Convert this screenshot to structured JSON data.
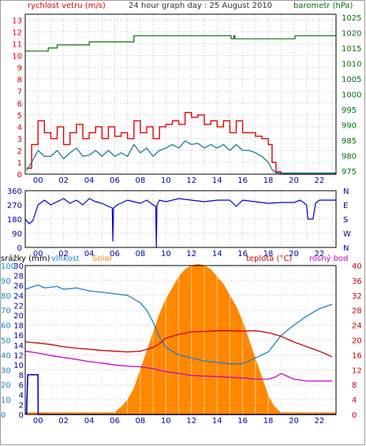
{
  "chart_data": [
    {
      "type": "line",
      "title": "24 hour graph day : 25 August 2010",
      "left_label": "rychlost vetru (m/s)",
      "right_label": "barometr (hPa)",
      "x_ticks": [
        "00",
        "02",
        "04",
        "06",
        "08",
        "10",
        "12",
        "14",
        "16",
        "18",
        "20",
        "22"
      ],
      "y_left_ticks": [
        "0",
        "1",
        "2",
        "3",
        "4",
        "5",
        "6",
        "7",
        "8",
        "9",
        "10",
        "11",
        "12",
        "13"
      ],
      "y_right_ticks": [
        "975",
        "980",
        "985",
        "990",
        "995",
        "1000",
        "1005",
        "1010",
        "1015",
        "1020",
        "1025"
      ],
      "ylim_left": [
        0,
        13.5
      ],
      "ylim_right": [
        974,
        1026
      ],
      "xlim": [
        -1,
        23.3
      ],
      "colors": {
        "gust": "#e00000",
        "wind": "#1a7a96",
        "pressure": "#007000"
      },
      "series": [
        {
          "key": "gust",
          "x": [
            -0.9,
            -0.5,
            0,
            0.5,
            1,
            1.5,
            2,
            2.5,
            3,
            3.5,
            4,
            4.5,
            5,
            5.5,
            6,
            6.5,
            7,
            7.5,
            8,
            8.5,
            9,
            9.5,
            10,
            10.5,
            11,
            11.5,
            12,
            12.5,
            13,
            13.5,
            14,
            14.5,
            15,
            15.5,
            16,
            16.5,
            17,
            17.5,
            18,
            18.3,
            18.6,
            19,
            23.3
          ],
          "y": [
            0.5,
            2.5,
            4.5,
            3.5,
            3,
            4,
            2.5,
            3.5,
            4.2,
            3,
            3.5,
            4,
            3,
            4,
            3.2,
            3.5,
            3,
            4.5,
            3.5,
            4,
            3,
            4,
            4.2,
            4.5,
            4.2,
            5.2,
            4.8,
            5,
            4.2,
            4.5,
            4,
            4.5,
            3.5,
            4.5,
            3.5,
            3.5,
            3.2,
            3,
            2.5,
            1,
            0.2,
            0,
            0
          ]
        },
        {
          "key": "wind",
          "x": [
            -0.9,
            -0.5,
            0,
            0.5,
            1,
            1.5,
            2,
            2.5,
            3,
            3.5,
            4,
            4.5,
            5,
            5.5,
            6,
            6.5,
            7,
            7.5,
            8,
            8.5,
            9,
            9.5,
            10,
            10.5,
            11,
            11.5,
            12,
            12.5,
            13,
            13.5,
            14,
            14.5,
            15,
            15.5,
            16,
            16.5,
            17,
            17.5,
            18,
            18.3,
            18.6,
            19,
            23.3
          ],
          "y": [
            0.3,
            1,
            2,
            1.5,
            1.5,
            2,
            1.3,
            1.8,
            2.2,
            1.5,
            1.6,
            2,
            1.5,
            2,
            1.5,
            1.8,
            1.5,
            2.5,
            1.8,
            2.2,
            1.5,
            2,
            2.2,
            2.5,
            2.2,
            2.8,
            2.5,
            2.6,
            2.2,
            2.5,
            2.2,
            2.5,
            2,
            2.5,
            2,
            2,
            1.8,
            1.5,
            1,
            0.4,
            0.1,
            0.1,
            0.1
          ]
        },
        {
          "key": "pressure",
          "x": [
            -1,
            0.1,
            0.8,
            1.5,
            3,
            4,
            6.2,
            7.5,
            11.3,
            13.5,
            14.9,
            15.1,
            15.3,
            15.4,
            16.3,
            18.3,
            20.1,
            23.3
          ],
          "y": [
            1014,
            1014,
            1015,
            1016,
            1016,
            1017,
            1017,
            1019,
            1019,
            1019,
            1019,
            1018,
            1019,
            1018,
            1018,
            1018,
            1019,
            1019
          ]
        }
      ]
    },
    {
      "type": "line",
      "title": "",
      "x_ticks": [
        "00",
        "02",
        "04",
        "06",
        "08",
        "10",
        "12",
        "14",
        "16",
        "18",
        "20",
        "22"
      ],
      "y_left_ticks": [
        "0",
        "90",
        "180",
        "270",
        "360"
      ],
      "y_right_ticks": [
        "N",
        "E",
        "S",
        "W",
        "N"
      ],
      "ylim": [
        0,
        360
      ],
      "xlim": [
        -1,
        23.3
      ],
      "colors": {
        "direction": "#0000cc"
      },
      "series": [
        {
          "key": "direction",
          "x": [
            -1,
            -0.7,
            -0.4,
            0,
            0.5,
            1,
            1.5,
            2,
            2.5,
            3,
            3.5,
            4,
            4.5,
            5,
            5.5,
            5.8,
            5.85,
            5.9,
            6.2,
            7,
            8,
            8.5,
            9,
            9.2,
            9.25,
            9.3,
            9.5,
            10,
            11,
            12,
            13,
            14,
            15,
            15.5,
            16,
            17,
            18,
            19,
            20,
            20.5,
            21,
            21.1,
            21.5,
            21.7,
            22,
            23.3
          ],
          "y": [
            180,
            150,
            170,
            270,
            300,
            270,
            290,
            310,
            280,
            300,
            270,
            310,
            290,
            280,
            260,
            250,
            40,
            250,
            270,
            300,
            280,
            300,
            270,
            260,
            0,
            270,
            300,
            290,
            310,
            300,
            290,
            300,
            300,
            260,
            300,
            290,
            280,
            285,
            285,
            300,
            270,
            180,
            180,
            280,
            300,
            300
          ]
        }
      ]
    },
    {
      "type": "area",
      "title": "",
      "labels": {
        "rain": "srážky (mm)",
        "humidity": "vlhkost",
        "solar": "Solar",
        "temperature": "teplota (°C)",
        "dewpoint": "rosný bod"
      },
      "x_ticks": [
        "00",
        "02",
        "04",
        "06",
        "08",
        "10",
        "12",
        "14",
        "16",
        "18",
        "20",
        "22"
      ],
      "y_hum_ticks": [
        "0",
        "10",
        "20",
        "30",
        "40",
        "50",
        "60",
        "70",
        "80",
        "90",
        "100"
      ],
      "y_rain_ticks": [
        "0",
        "2",
        "4",
        "6",
        "8",
        "10",
        "12",
        "14",
        "16",
        "18",
        "20",
        "22",
        "24",
        "26",
        "28",
        "30"
      ],
      "y_temp_ticks": [
        "0",
        "4",
        "8",
        "12",
        "16",
        "20",
        "24",
        "28",
        "32",
        "36",
        "40"
      ],
      "ylim_humidity": [
        0,
        100
      ],
      "ylim_rain": [
        0,
        30
      ],
      "ylim_temperature": [
        0,
        40
      ],
      "xlim": [
        -1,
        23.3
      ],
      "colors": {
        "humidity": "#1e80c8",
        "temperature": "#d00000",
        "dewpoint": "#cc00cc",
        "solar": "#ff8800",
        "rain": "#0000cc"
      },
      "series": [
        {
          "key": "humidity",
          "x": [
            -1,
            0,
            0.5,
            1.5,
            2,
            3,
            4,
            5,
            6,
            7,
            8,
            8.5,
            9,
            9.5,
            10,
            11,
            12,
            13,
            14,
            15,
            16,
            16.5,
            17,
            18,
            19,
            20,
            21,
            22,
            23
          ],
          "y": [
            84,
            87,
            85,
            86,
            84,
            85,
            83,
            82,
            81,
            80,
            75,
            70,
            62,
            52,
            45,
            40,
            38,
            36,
            35,
            34,
            34,
            36,
            38,
            42,
            53,
            60,
            66,
            71,
            74
          ]
        },
        {
          "key": "temperature",
          "x": [
            -1,
            0,
            1,
            2,
            3,
            4,
            5,
            6,
            7,
            8,
            9,
            9.5,
            10,
            11,
            12,
            13,
            14,
            15,
            16,
            17,
            18,
            19,
            20,
            21,
            22,
            23
          ],
          "y": [
            19.5,
            19.2,
            18.8,
            18.2,
            17.8,
            17.5,
            17.2,
            17,
            16.8,
            17,
            18,
            19,
            20.5,
            21.5,
            22.2,
            22.3,
            22.5,
            22.5,
            22.4,
            22.5,
            22,
            21,
            19.5,
            18.2,
            17,
            15.5
          ]
        },
        {
          "key": "dewpoint",
          "x": [
            -1,
            0,
            1,
            2,
            3,
            4,
            5,
            6,
            7,
            8,
            9,
            10,
            11,
            12,
            13,
            14,
            15,
            16,
            17,
            18,
            18.5,
            19,
            20,
            21,
            22,
            23
          ],
          "y": [
            17,
            16.5,
            15.8,
            15.3,
            14.8,
            14.2,
            13.8,
            13.3,
            13,
            12.8,
            12.3,
            11.5,
            11,
            10.5,
            10.3,
            10.2,
            10,
            9.8,
            9.5,
            9.5,
            10,
            11,
            9.5,
            9,
            9,
            9
          ]
        },
        {
          "key": "solar",
          "x": [
            -1,
            5.9,
            6,
            6.5,
            7,
            7.5,
            8,
            8.5,
            9,
            9.5,
            10,
            10.5,
            11,
            11.5,
            12,
            12.5,
            13,
            13.5,
            14,
            14.5,
            15,
            15.5,
            16,
            16.5,
            17,
            17.5,
            18,
            18.5,
            19,
            23.3
          ],
          "y": [
            0.5,
            0.5,
            0.6,
            2,
            4,
            7,
            12,
            17,
            22,
            27,
            31,
            34,
            37,
            39,
            40,
            40.4,
            40,
            39,
            37,
            35,
            32,
            29,
            25,
            20,
            15,
            10,
            5,
            2,
            0.5,
            0.5
          ]
        },
        {
          "key": "rain",
          "x": [
            -0.9,
            -0.8,
            0,
            0.01,
            23.3
          ],
          "y": [
            0,
            8,
            8,
            0,
            0
          ]
        }
      ]
    }
  ]
}
